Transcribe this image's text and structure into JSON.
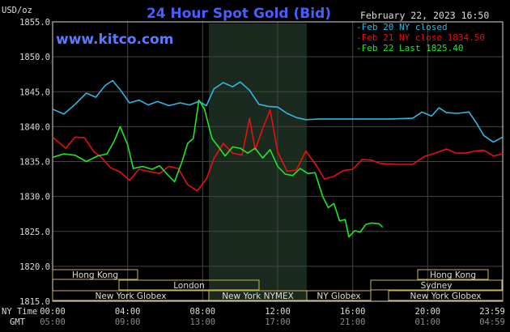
{
  "header": {
    "title": "24 Hour Spot Gold (Bid)",
    "date": "February 22, 2023 16:50",
    "website": "www.kitco.com",
    "unit": "USD/oz"
  },
  "legend": [
    {
      "label": "Feb 20 NY closed",
      "color": "#33b5e5"
    },
    {
      "label": "Feb 21 NY close 1834.50",
      "color": "#e81010"
    },
    {
      "label": "Feb 22 Last 1825.40",
      "color": "#22e622"
    }
  ],
  "axis": {
    "y_ticks": [
      "1855.0",
      "1850.0",
      "1845.0",
      "1840.0",
      "1835.0",
      "1830.0",
      "1825.0",
      "1820.0",
      "1815.0"
    ],
    "x_ticks_ny": [
      "00:00",
      "04:00",
      "08:00",
      "12:00",
      "16:00",
      "20:00",
      "23:59"
    ],
    "x_ticks_gmt": [
      "05:00",
      "09:00",
      "13:00",
      "17:00",
      "21:00",
      "01:00",
      "04:59"
    ],
    "ny_time_label": "NY Time",
    "gmt_label": "GMT"
  },
  "sessions": {
    "row1": [
      {
        "label": "Hong Kong"
      },
      {
        "label": "Hong Kong"
      }
    ],
    "row2": [
      {
        "label": "London"
      },
      {
        "label": "Sydney"
      }
    ],
    "row3": [
      {
        "label": "New York Globex"
      },
      {
        "label": "New York NYMEX"
      },
      {
        "label": "NY Globex"
      },
      {
        "label": "New York Globex"
      }
    ]
  },
  "colors": {
    "frame": "#dddddd",
    "grid": "#444444",
    "shade": "#1a2a1e",
    "title": "#4a5dff",
    "website": "#5a7bff",
    "session_border": "#c9b45a",
    "text": "#dddddd"
  },
  "chart_data": {
    "type": "line",
    "ylim": [
      1815.0,
      1855.0
    ],
    "x_unit": "hours since 00:00 NY time",
    "xlim": [
      0,
      24
    ],
    "series": [
      {
        "name": "Feb 20 NY closed",
        "points": [
          [
            0,
            1842.5
          ],
          [
            0.6,
            1841.8
          ],
          [
            1.2,
            1843.2
          ],
          [
            1.8,
            1844.8
          ],
          [
            2.3,
            1844.2
          ],
          [
            2.8,
            1845.9
          ],
          [
            3.2,
            1846.6
          ],
          [
            3.6,
            1845.3
          ],
          [
            4.1,
            1843.4
          ],
          [
            4.6,
            1843.8
          ],
          [
            5.1,
            1843.1
          ],
          [
            5.6,
            1843.6
          ],
          [
            6.2,
            1843.0
          ],
          [
            6.8,
            1843.4
          ],
          [
            7.3,
            1843.1
          ],
          [
            7.8,
            1843.6
          ],
          [
            8.2,
            1843.0
          ],
          [
            8.6,
            1845.4
          ],
          [
            9.1,
            1846.3
          ],
          [
            9.6,
            1845.7
          ],
          [
            10.0,
            1846.4
          ],
          [
            10.5,
            1845.2
          ],
          [
            11.0,
            1843.2
          ],
          [
            11.5,
            1842.9
          ],
          [
            12.0,
            1842.8
          ],
          [
            12.5,
            1841.9
          ],
          [
            13.0,
            1841.3
          ],
          [
            13.5,
            1841.0
          ],
          [
            14.2,
            1841.1
          ],
          [
            15.0,
            1841.1
          ],
          [
            16.0,
            1841.1
          ],
          [
            17.0,
            1841.1
          ],
          [
            18.0,
            1841.1
          ],
          [
            19.2,
            1841.2
          ],
          [
            19.7,
            1842.1
          ],
          [
            20.2,
            1841.5
          ],
          [
            20.6,
            1842.7
          ],
          [
            21.0,
            1842.0
          ],
          [
            21.6,
            1841.9
          ],
          [
            22.2,
            1842.1
          ],
          [
            22.6,
            1840.5
          ],
          [
            23.0,
            1838.7
          ],
          [
            23.5,
            1837.8
          ],
          [
            24.0,
            1838.5
          ]
        ]
      },
      {
        "name": "Feb 21 NY close 1834.50",
        "points": [
          [
            0,
            1838.5
          ],
          [
            0.7,
            1836.9
          ],
          [
            1.2,
            1838.5
          ],
          [
            1.7,
            1838.4
          ],
          [
            2.2,
            1836.4
          ],
          [
            2.6,
            1835.6
          ],
          [
            3.1,
            1834.1
          ],
          [
            3.6,
            1833.5
          ],
          [
            4.1,
            1832.3
          ],
          [
            4.6,
            1833.9
          ],
          [
            5.1,
            1833.6
          ],
          [
            5.7,
            1833.3
          ],
          [
            6.2,
            1834.3
          ],
          [
            6.7,
            1834.0
          ],
          [
            7.2,
            1831.7
          ],
          [
            7.7,
            1830.8
          ],
          [
            8.2,
            1832.5
          ],
          [
            8.6,
            1835.4
          ],
          [
            9.1,
            1837.6
          ],
          [
            9.6,
            1836.2
          ],
          [
            10.1,
            1835.9
          ],
          [
            10.5,
            1841.2
          ],
          [
            10.8,
            1836.7
          ],
          [
            11.2,
            1839.7
          ],
          [
            11.6,
            1842.4
          ],
          [
            12.0,
            1836.4
          ],
          [
            12.5,
            1833.6
          ],
          [
            13.0,
            1833.8
          ],
          [
            13.5,
            1836.5
          ],
          [
            14.0,
            1834.7
          ],
          [
            14.5,
            1832.5
          ],
          [
            15.0,
            1832.9
          ],
          [
            15.5,
            1833.7
          ],
          [
            16.0,
            1833.9
          ],
          [
            16.5,
            1835.3
          ],
          [
            17.0,
            1835.2
          ],
          [
            17.5,
            1834.7
          ],
          [
            18.5,
            1834.6
          ],
          [
            19.2,
            1834.6
          ],
          [
            19.8,
            1835.7
          ],
          [
            20.4,
            1836.2
          ],
          [
            21.0,
            1836.8
          ],
          [
            21.5,
            1836.2
          ],
          [
            22.0,
            1836.2
          ],
          [
            22.5,
            1836.5
          ],
          [
            23.0,
            1836.6
          ],
          [
            23.5,
            1835.8
          ],
          [
            24.0,
            1836.1
          ]
        ]
      },
      {
        "name": "Feb 22 Last 1825.40",
        "points": [
          [
            0,
            1835.6
          ],
          [
            0.6,
            1836.1
          ],
          [
            1.2,
            1835.9
          ],
          [
            1.8,
            1835.0
          ],
          [
            2.4,
            1835.8
          ],
          [
            2.9,
            1836.1
          ],
          [
            3.3,
            1838.0
          ],
          [
            3.6,
            1840.0
          ],
          [
            4.0,
            1837.4
          ],
          [
            4.3,
            1834.0
          ],
          [
            4.8,
            1834.3
          ],
          [
            5.3,
            1833.9
          ],
          [
            5.7,
            1834.4
          ],
          [
            6.1,
            1833.2
          ],
          [
            6.5,
            1832.1
          ],
          [
            6.9,
            1835.0
          ],
          [
            7.2,
            1837.6
          ],
          [
            7.5,
            1838.3
          ],
          [
            7.8,
            1843.8
          ],
          [
            8.1,
            1842.5
          ],
          [
            8.5,
            1838.3
          ],
          [
            8.9,
            1836.9
          ],
          [
            9.2,
            1835.8
          ],
          [
            9.6,
            1837.1
          ],
          [
            10.0,
            1836.9
          ],
          [
            10.4,
            1836.2
          ],
          [
            10.8,
            1836.9
          ],
          [
            11.2,
            1835.5
          ],
          [
            11.6,
            1836.7
          ],
          [
            12.0,
            1834.3
          ],
          [
            12.4,
            1833.2
          ],
          [
            12.8,
            1833.0
          ],
          [
            13.2,
            1834.0
          ],
          [
            13.6,
            1833.3
          ],
          [
            14.0,
            1833.4
          ],
          [
            14.4,
            1830.0
          ],
          [
            14.7,
            1828.4
          ],
          [
            15.0,
            1829.0
          ],
          [
            15.3,
            1826.5
          ],
          [
            15.6,
            1826.7
          ],
          [
            15.8,
            1824.2
          ],
          [
            16.1,
            1825.1
          ],
          [
            16.4,
            1824.9
          ],
          [
            16.7,
            1826.0
          ],
          [
            17.0,
            1826.2
          ],
          [
            17.4,
            1826.1
          ],
          [
            17.6,
            1825.6
          ]
        ]
      }
    ]
  }
}
